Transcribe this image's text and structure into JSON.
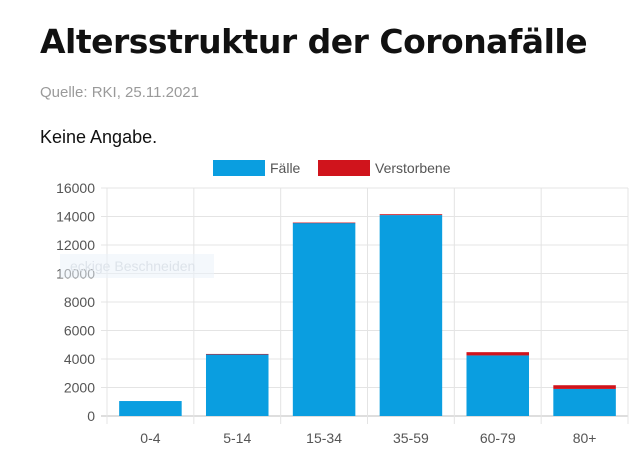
{
  "header": {
    "title": "Altersstruktur der Coronafälle",
    "source": "Quelle: RKI, 25.11.2021",
    "note": "Keine Angabe."
  },
  "overlay_text": "eckige Beschneiden",
  "colors": {
    "faelle": "#0a9ee0",
    "verstorbene": "#d0141c",
    "grid": "#e4e4e4",
    "axis_text": "#555555"
  },
  "chart_data": {
    "type": "bar",
    "stacked": true,
    "categories": [
      "0-4",
      "5-14",
      "15-34",
      "35-59",
      "60-79",
      "80+"
    ],
    "series": [
      {
        "name": "Fälle",
        "values": [
          1050,
          4350,
          13550,
          14100,
          4250,
          1900
        ],
        "color": "#0a9ee0"
      },
      {
        "name": "Verstorbene",
        "values": [
          0,
          5,
          25,
          60,
          230,
          260
        ],
        "color": "#d0141c"
      }
    ],
    "ylim": [
      0,
      16000
    ],
    "yticks": [
      0,
      2000,
      4000,
      6000,
      8000,
      10000,
      12000,
      14000,
      16000
    ],
    "grid": true,
    "legend": "top-center"
  }
}
